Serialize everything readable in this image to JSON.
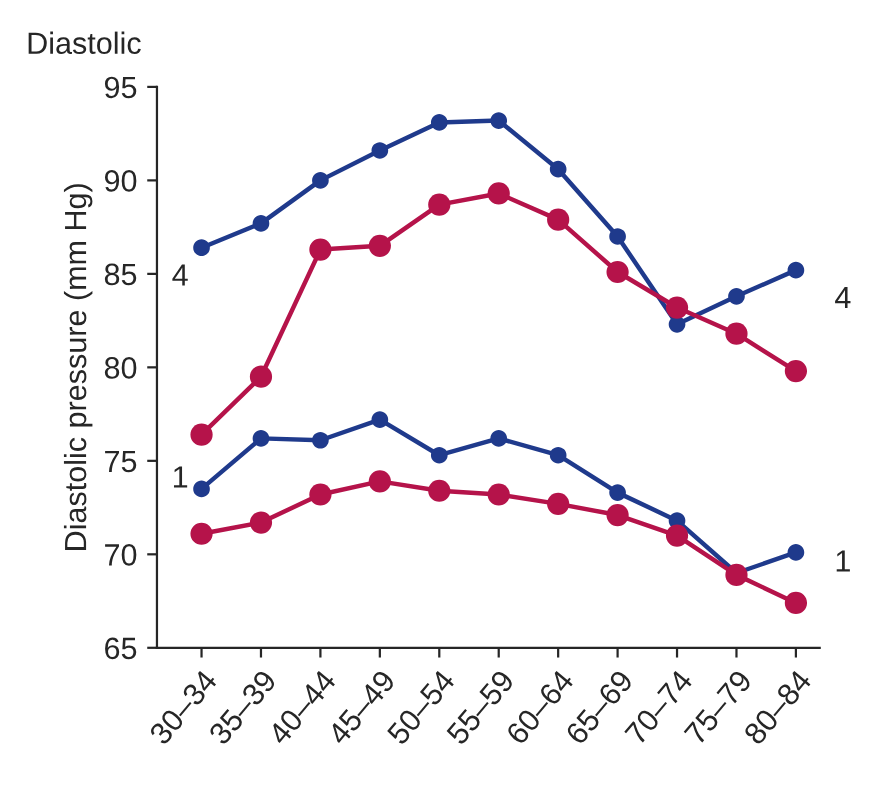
{
  "chart_data": {
    "type": "line",
    "title": "Diastolic",
    "ylabel": "Diastolic pressure (mm Hg)",
    "categories": [
      "30–34",
      "35–39",
      "40–44",
      "45–49",
      "50–54",
      "55–59",
      "60–64",
      "65–69",
      "70–74",
      "75–79",
      "80–84"
    ],
    "series": [
      {
        "color": "#1f3a8c",
        "values": [
          86.4,
          87.7,
          90.0,
          91.6,
          93.1,
          93.2,
          90.6,
          87.0,
          82.3,
          83.8,
          85.2
        ]
      },
      {
        "color": "#b5134a",
        "values": [
          76.4,
          79.5,
          86.3,
          86.5,
          88.7,
          89.3,
          87.9,
          85.1,
          83.2,
          81.8,
          79.8
        ]
      },
      {
        "color": "#1f3a8c",
        "values": [
          73.5,
          76.2,
          76.1,
          77.2,
          75.3,
          76.2,
          75.3,
          73.3,
          71.8,
          69.0,
          70.1
        ]
      },
      {
        "color": "#b5134a",
        "values": [
          71.1,
          71.7,
          73.2,
          73.9,
          73.4,
          73.2,
          72.7,
          72.1,
          71.0,
          68.9,
          67.4
        ]
      }
    ],
    "annotations": [
      "4",
      "4",
      "1",
      "1"
    ],
    "ylim": [
      65,
      95
    ],
    "yticks": [
      65,
      70,
      75,
      80,
      85,
      90,
      95
    ],
    "marker": "circle",
    "line_style": "solid",
    "grid": false,
    "legend": false
  }
}
